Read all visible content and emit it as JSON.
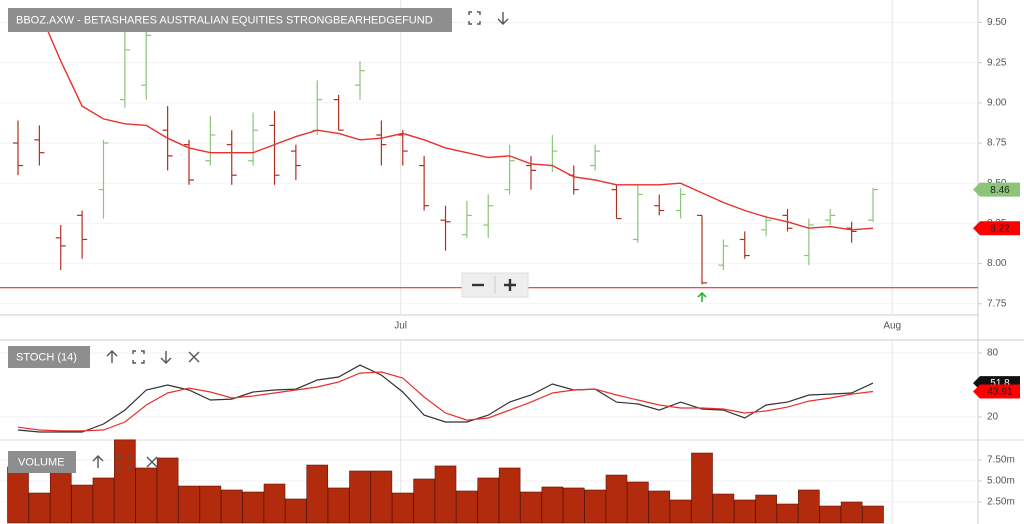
{
  "chart_data": [
    {
      "type": "ohlc",
      "title": "BBOZ.AXW - BETASHARES AUSTRALIAN EQUITIES STRONGBEARHEDGEFUND",
      "categories": [
        null,
        null,
        null,
        null,
        null,
        null,
        null,
        null,
        null,
        null,
        null,
        null,
        null,
        null,
        null,
        null,
        null,
        null,
        null,
        null,
        null,
        null,
        null,
        null,
        null,
        null,
        null,
        null,
        null,
        null,
        null,
        null,
        null,
        null,
        null,
        null,
        null,
        null,
        null,
        null,
        null
      ],
      "open": [
        8.75,
        8.77,
        8.16,
        8.3,
        8.46,
        9.02,
        9.11,
        8.83,
        8.74,
        8.64,
        8.74,
        8.64,
        8.86,
        8.7,
        8.83,
        9.02,
        9.11,
        8.8,
        8.8,
        8.61,
        8.27,
        8.18,
        8.24,
        8.46,
        8.61,
        8.61,
        8.55,
        8.61,
        8.46,
        8.15,
        8.36,
        8.33,
        8.3,
        7.99,
        8.15,
        8.21,
        8.3,
        8.05,
        8.27,
        8.22,
        8.27
      ],
      "high": [
        8.89,
        8.86,
        8.24,
        8.33,
        8.77,
        9.45,
        9.45,
        8.98,
        8.77,
        8.92,
        8.83,
        8.94,
        8.95,
        8.74,
        9.14,
        9.05,
        9.26,
        8.89,
        8.83,
        8.67,
        8.36,
        8.39,
        8.43,
        8.74,
        8.67,
        8.8,
        8.61,
        8.74,
        8.49,
        8.49,
        8.43,
        8.47,
        8.3,
        8.15,
        8.2,
        8.3,
        8.34,
        8.28,
        8.34,
        8.26,
        8.47
      ],
      "low": [
        8.55,
        8.61,
        7.96,
        8.03,
        8.28,
        8.97,
        9.02,
        8.58,
        8.49,
        8.61,
        8.49,
        8.61,
        8.49,
        8.52,
        8.8,
        8.83,
        9.02,
        8.61,
        8.61,
        8.33,
        8.08,
        8.16,
        8.16,
        8.43,
        8.46,
        8.57,
        8.43,
        8.58,
        8.28,
        8.13,
        8.3,
        8.28,
        7.87,
        7.96,
        8.03,
        8.17,
        8.2,
        7.99,
        8.24,
        8.13,
        8.26
      ],
      "close": [
        8.61,
        8.69,
        8.11,
        8.15,
        8.75,
        9.33,
        9.42,
        8.67,
        8.52,
        8.8,
        8.55,
        8.83,
        8.55,
        8.61,
        9.02,
        8.83,
        9.2,
        8.74,
        8.7,
        8.36,
        8.26,
        8.3,
        8.36,
        8.64,
        8.58,
        8.7,
        8.46,
        8.7,
        8.28,
        8.43,
        8.33,
        8.43,
        7.88,
        8.11,
        8.05,
        8.27,
        8.22,
        8.24,
        8.3,
        8.2,
        8.46
      ],
      "up_color": "#8cc47a",
      "down_color": "#b03020",
      "moving_average": {
        "color": "#e8312f",
        "values": [
          null,
          9.57,
          9.26,
          8.98,
          8.9,
          8.87,
          8.86,
          8.78,
          8.72,
          8.69,
          8.69,
          8.69,
          8.74,
          8.79,
          8.83,
          8.81,
          8.77,
          8.78,
          8.81,
          8.77,
          8.72,
          8.69,
          8.66,
          8.67,
          8.62,
          8.61,
          8.54,
          8.52,
          8.49,
          8.49,
          8.49,
          8.5,
          8.44,
          8.38,
          8.33,
          8.29,
          8.26,
          8.22,
          8.23,
          8.21,
          8.22
        ]
      },
      "hline": {
        "value": 7.85,
        "color": "#e8312f"
      },
      "ylim": [
        7.68,
        9.64
      ],
      "yticks": [
        7.75,
        {
          "value": 8,
          "label": "8.00"
        },
        8.25,
        {
          "value": 8.5,
          "label": "8.50"
        },
        8.75,
        {
          "value": 9,
          "label": "9.00"
        },
        9.25,
        {
          "value": 9.5,
          "label": "9.50"
        }
      ],
      "xticks": [
        {
          "value": 17.9,
          "label": "Jul"
        },
        {
          "value": 40.9,
          "label": "Aug"
        }
      ],
      "grid": true
    },
    {
      "type": "line",
      "title": "STOCH (14)",
      "series": [
        {
          "color": "#333333",
          "values": [
            7.8,
            5.9,
            5.9,
            5.9,
            13.4,
            26.5,
            45.3,
            50.0,
            45.3,
            35.9,
            36.8,
            43.4,
            45.3,
            46.2,
            54.7,
            57.5,
            68.7,
            59.3,
            43.4,
            21.8,
            15.3,
            15.3,
            21.8,
            34.0,
            40.6,
            50.9,
            45.3,
            46.2,
            34.0,
            32.2,
            26.5,
            34.0,
            27.5,
            26.5,
            19.0,
            31.2,
            34.0,
            40.6,
            41.5,
            42.5,
            51.8
          ]
        },
        {
          "color": "#e8312f",
          "values": [
            10.4,
            7.8,
            6.9,
            6.9,
            7.8,
            15.3,
            31.2,
            42.5,
            47.1,
            43.4,
            37.8,
            39.7,
            42.5,
            45.3,
            48.1,
            52.8,
            61.2,
            62.2,
            56.5,
            38.7,
            23.7,
            17.1,
            19.0,
            26.5,
            34.0,
            42.5,
            45.3,
            46.2,
            40.6,
            35.9,
            31.2,
            28.4,
            28.4,
            27.5,
            23.7,
            25.6,
            29.3,
            34.9,
            37.8,
            41.5,
            43.91
          ]
        }
      ],
      "ylim": [
        0,
        100
      ],
      "yticks": [
        20,
        80
      ],
      "grid": true
    },
    {
      "type": "bar",
      "title": "VOLUME",
      "values": [
        6670000,
        3570000,
        6070000,
        4520000,
        5360000,
        9900000,
        6550000,
        7740000,
        4400000,
        4400000,
        3930000,
        3690000,
        4640000,
        2860000,
        6900000,
        4170000,
        6190000,
        6190000,
        3570000,
        5240000,
        6790000,
        3810000,
        5360000,
        6550000,
        3690000,
        4290000,
        4170000,
        3930000,
        5710000,
        4880000,
        3810000,
        2740000,
        8330000,
        3450000,
        2740000,
        3330000,
        2260000,
        3930000,
        2020000,
        2500000,
        2020000
      ],
      "color": "#b22b0d",
      "ylim": [
        0,
        10000000
      ],
      "yticks": [
        {
          "value": 2500000,
          "label": "2.50m"
        },
        {
          "value": 5000000,
          "label": "5.00m"
        },
        {
          "value": 7500000,
          "label": "7.50m"
        }
      ],
      "grid": true
    }
  ]
}
